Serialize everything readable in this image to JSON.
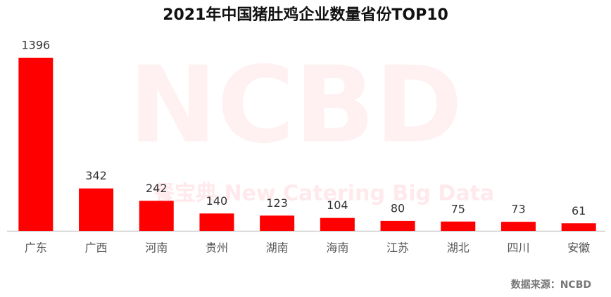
{
  "chart_data": {
    "type": "bar",
    "title": "2021年中国猪肚鸡企业数量省份TOP10",
    "categories": [
      "广东",
      "广西",
      "河南",
      "贵州",
      "湖南",
      "海南",
      "江苏",
      "湖北",
      "四川",
      "安徽"
    ],
    "values": [
      1396,
      342,
      242,
      140,
      123,
      104,
      80,
      75,
      73,
      61
    ],
    "color": "#ff0000",
    "annotations": [
      "NCBD",
      "餐宝典 New Catering Big Data"
    ],
    "source": "数据来源：NCBD"
  }
}
